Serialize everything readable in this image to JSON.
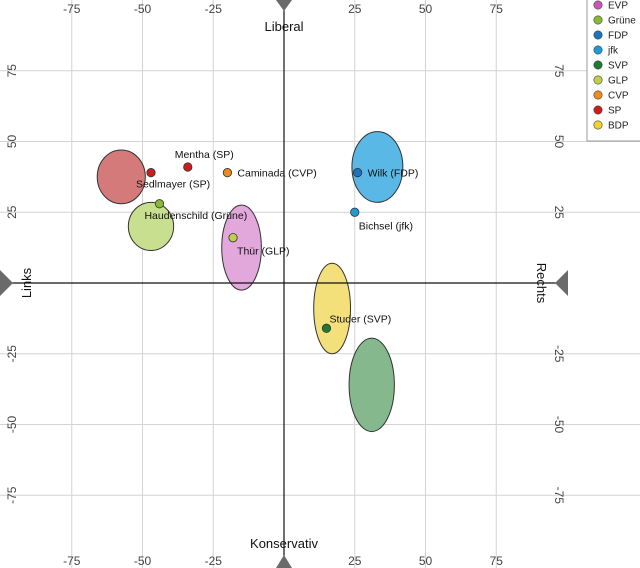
{
  "chart_data": {
    "type": "scatter",
    "title": "",
    "x_range": [
      -100,
      100
    ],
    "y_range": [
      -100,
      100
    ],
    "grid_step": 25,
    "grid": true,
    "legend_position": "top-right",
    "x_ticks": [
      {
        "value": -75,
        "label": "-75"
      },
      {
        "value": -50,
        "label": "-50"
      },
      {
        "value": -25,
        "label": "-25"
      },
      {
        "value": 25,
        "label": "25"
      },
      {
        "value": 50,
        "label": "50"
      },
      {
        "value": 75,
        "label": "75"
      }
    ],
    "y_ticks": [
      {
        "value": 75,
        "label": "75"
      },
      {
        "value": 50,
        "label": "50"
      },
      {
        "value": 25,
        "label": "25"
      },
      {
        "value": -25,
        "label": "-25"
      },
      {
        "value": -50,
        "label": "-50"
      },
      {
        "value": -75,
        "label": "-75"
      }
    ],
    "axis_labels": {
      "top": "Liberal",
      "bottom": "Konservativ",
      "left": "Links",
      "right": "Rechts"
    },
    "parties": [
      {
        "name": "EVP",
        "color": "#cc55bb"
      },
      {
        "name": "Grüne",
        "color": "#88bb33"
      },
      {
        "name": "FDP",
        "color": "#1e73be"
      },
      {
        "name": "jfk",
        "color": "#1e9ad6"
      },
      {
        "name": "SVP",
        "color": "#1e7a32"
      },
      {
        "name": "GLP",
        "color": "#bfcf4a"
      },
      {
        "name": "CVP",
        "color": "#ee8a1e"
      },
      {
        "name": "SP",
        "color": "#c81e1e"
      },
      {
        "name": "BDP",
        "color": "#f2d22e"
      }
    ],
    "ellipses": [
      {
        "party": "SP",
        "cx": -57.5,
        "cy": 37.5,
        "rx": 8.5,
        "ry": 9.5,
        "color": "#d47a7a"
      },
      {
        "party": "Grüne",
        "cx": -47,
        "cy": 20,
        "rx": 8,
        "ry": 8.5,
        "color": "#c8df8f"
      },
      {
        "name": "EVP",
        "party": "EVP",
        "cx": -15,
        "cy": 12.5,
        "rx": 7,
        "ry": 15,
        "color": "#e2a8dc"
      },
      {
        "party": "FDP",
        "cx": 33,
        "cy": 41,
        "rx": 9,
        "ry": 12.5,
        "color": "#5ab8e6"
      },
      {
        "party": "BDP",
        "cx": 17,
        "cy": -9,
        "rx": 6.5,
        "ry": 16,
        "color": "#f4e07a"
      },
      {
        "party": "SVP",
        "cx": 31,
        "cy": -36,
        "rx": 8,
        "ry": 16.5,
        "color": "#86b88e"
      }
    ],
    "points": [
      {
        "label": "Mentha (SP)",
        "x": -34,
        "y": 41,
        "party": "SP",
        "label_anchor": "left"
      },
      {
        "label": "Sedlmayer (SP)",
        "x": -47,
        "y": 39,
        "party": "SP",
        "label_anchor": "below"
      },
      {
        "label": "Caminada (CVP)",
        "x": -20,
        "y": 39,
        "party": "CVP",
        "label_anchor": "right"
      },
      {
        "label": "Haudenschild (Grüne)",
        "x": -44,
        "y": 28,
        "party": "Grüne",
        "label_anchor": "below"
      },
      {
        "label": "Thür (GLP)",
        "x": -18,
        "y": 16,
        "party": "GLP",
        "label_anchor": "below-right"
      },
      {
        "label": "Wilk (FDP)",
        "x": 26,
        "y": 39,
        "party": "FDP",
        "label_anchor": "right"
      },
      {
        "label": "Bichsel (jfk)",
        "x": 25,
        "y": 25,
        "party": "jfk",
        "label_anchor": "below-right"
      },
      {
        "label": "Studer (SVP)",
        "x": 15,
        "y": -16,
        "party": "SVP",
        "label_anchor": "above-right"
      }
    ]
  }
}
